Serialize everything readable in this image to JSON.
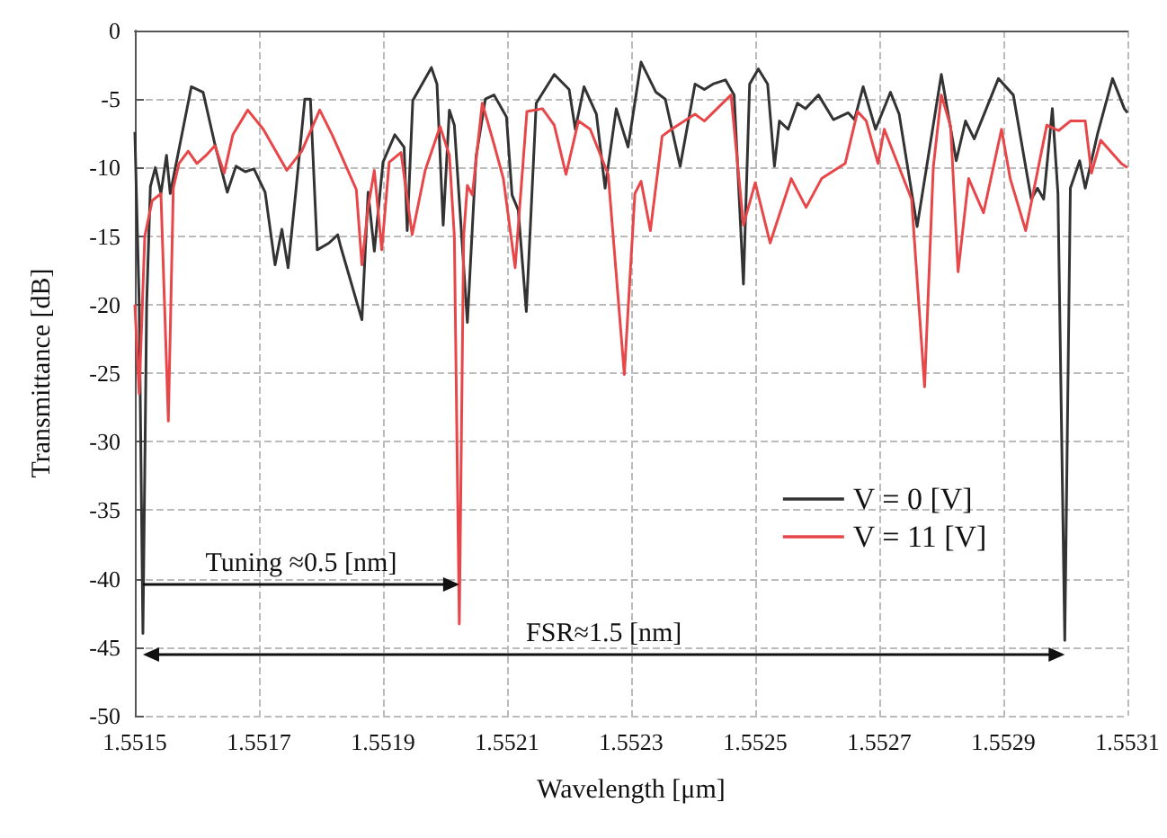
{
  "chart_data": {
    "type": "line",
    "xlabel": "Wavelength [μm]",
    "ylabel": "Transmittance [dB]",
    "xlim": [
      1.5515,
      1.5531
    ],
    "xticks": [
      1.5515,
      1.5517,
      1.5519,
      1.5521,
      1.5523,
      1.5525,
      1.5527,
      1.5529,
      1.5531
    ],
    "ylim": [
      -50,
      0
    ],
    "yticks": [
      -50,
      -45,
      -40,
      -35,
      -30,
      -25,
      -20,
      -15,
      -10,
      -5,
      0
    ],
    "grid": true,
    "legend": "right",
    "marker": "none",
    "line_style": "solid",
    "annotations": [
      "Tuning ≈0.5 [nm]",
      "FSR≈1.5 [nm]"
    ],
    "series": [
      {
        "name": "V = 0 [V]",
        "color": "#333333",
        "x": [
          1.5515,
          1.551507,
          1.551513,
          1.551519,
          1.551525,
          1.551533,
          1.551542,
          1.551551,
          1.551557,
          1.551591,
          1.55161,
          1.551629,
          1.551649,
          1.551663,
          1.551678,
          1.551692,
          1.55171,
          1.551726,
          1.551737,
          1.551747,
          1.55176,
          1.551774,
          1.551783,
          1.551794,
          1.551813,
          1.551827,
          1.551832,
          1.551866,
          1.551876,
          1.551886,
          1.5519,
          1.551919,
          1.551934,
          1.551939,
          1.551948,
          1.551978,
          1.551987,
          1.551997,
          1.552007,
          1.552015,
          1.552036,
          1.55205,
          1.552065,
          1.552079,
          1.552099,
          1.552108,
          1.552118,
          1.552131,
          1.552147,
          1.552176,
          1.5522,
          1.55221,
          1.552224,
          1.552244,
          1.552258,
          1.552276,
          1.552295,
          1.552316,
          1.55234,
          1.552355,
          1.552379,
          1.552403,
          1.552418,
          1.552432,
          1.552452,
          1.552466,
          1.552481,
          1.552491,
          1.552505,
          1.55252,
          1.552531,
          1.552539,
          1.552553,
          1.552568,
          1.552581,
          1.552602,
          1.552626,
          1.55265,
          1.55266,
          1.552674,
          1.552694,
          1.552718,
          1.552732,
          1.552761,
          1.5528,
          1.552824,
          1.552839,
          1.552853,
          1.552892,
          1.552916,
          1.552945,
          1.552955,
          1.552965,
          1.552979,
          1.552988,
          1.552999,
          1.553008,
          1.553023,
          1.553032,
          1.553052,
          1.553076,
          1.553095,
          1.5531
        ],
        "values": [
          -7.4,
          -20,
          -44,
          -20,
          -11.4,
          -10,
          -11.9,
          -9.1,
          -11.9,
          -4.1,
          -4.5,
          -8.3,
          -11.8,
          -9.9,
          -10.3,
          -10.1,
          -11.8,
          -17.1,
          -14.5,
          -17.3,
          -11.5,
          -5,
          -5,
          -16,
          -15.5,
          -14.9,
          -15.8,
          -21.1,
          -11.8,
          -16.1,
          -9.6,
          -7.6,
          -8.5,
          -14.6,
          -5.1,
          -2.7,
          -3.9,
          -14.2,
          -5.8,
          -6.9,
          -21.3,
          -9.2,
          -5,
          -4.7,
          -6.3,
          -12,
          -13.1,
          -20.5,
          -5.3,
          -3.2,
          -4.3,
          -7.2,
          -4.1,
          -6.1,
          -11.5,
          -5.7,
          -8.5,
          -2.3,
          -4.5,
          -5,
          -9.9,
          -3.9,
          -4.3,
          -3.9,
          -3.6,
          -4.7,
          -18.5,
          -3.9,
          -2.8,
          -3.9,
          -9.9,
          -6.6,
          -7.2,
          -5.3,
          -5.7,
          -4.7,
          -6.5,
          -6,
          -6.5,
          -4.1,
          -7.2,
          -4.5,
          -6.1,
          -14.3,
          -3.2,
          -9.5,
          -6.6,
          -7.9,
          -3.5,
          -4.7,
          -12.3,
          -11.5,
          -12.3,
          -5.7,
          -11.9,
          -44.5,
          -11.5,
          -9.5,
          -11.5,
          -7.5,
          -3.5,
          -5.7,
          -6
        ]
      },
      {
        "name": "V = 11 [V]",
        "color": "#e8474a",
        "x": [
          1.5515,
          1.551507,
          1.551516,
          1.551528,
          1.551542,
          1.551554,
          1.551562,
          1.551571,
          1.551586,
          1.5516,
          1.551615,
          1.551629,
          1.551644,
          1.551658,
          1.551682,
          1.551707,
          1.551745,
          1.551769,
          1.551798,
          1.551818,
          1.551857,
          1.551866,
          1.551876,
          1.551886,
          1.551898,
          1.55191,
          1.551929,
          1.551947,
          1.551968,
          1.551992,
          1.552007,
          1.552015,
          1.552023,
          1.55203,
          1.552036,
          1.552044,
          1.55206,
          1.552079,
          1.552094,
          1.552113,
          1.552132,
          1.552157,
          1.552176,
          1.552195,
          1.552215,
          1.552234,
          1.552263,
          1.552289,
          1.552306,
          1.552316,
          1.552331,
          1.55235,
          1.552365,
          1.552403,
          1.552418,
          1.552461,
          1.552481,
          1.5525,
          1.552524,
          1.552558,
          1.552582,
          1.552607,
          1.552645,
          1.552665,
          1.552679,
          1.552698,
          1.552708,
          1.552752,
          1.552773,
          1.552787,
          1.5528,
          1.552815,
          1.552827,
          1.552844,
          1.552868,
          1.552897,
          1.552911,
          1.552936,
          1.55297,
          1.552989,
          1.553008,
          1.553032,
          1.553042,
          1.553057,
          1.55309,
          1.5531
        ],
        "values": [
          -20,
          -26.5,
          -15,
          -12.4,
          -11.9,
          -28.5,
          -11.5,
          -9.7,
          -8.8,
          -9.7,
          -9.1,
          -8.4,
          -10.4,
          -7.6,
          -5.8,
          -7.2,
          -10.2,
          -8.8,
          -5.8,
          -7.6,
          -11.6,
          -17.1,
          -12.9,
          -10.2,
          -16,
          -9.6,
          -8.9,
          -14.9,
          -10.2,
          -7,
          -9.1,
          -15,
          -43.3,
          -15,
          -11.3,
          -12,
          -5.3,
          -8.3,
          -10.8,
          -17.3,
          -5.9,
          -5.7,
          -6.9,
          -10.5,
          -6.6,
          -7.2,
          -10.5,
          -25.1,
          -11.9,
          -11,
          -14.6,
          -7.7,
          -7.2,
          -6.1,
          -6.6,
          -4.7,
          -14.2,
          -11.1,
          -15.5,
          -10.8,
          -12.9,
          -10.8,
          -9.7,
          -5.9,
          -6.6,
          -9.7,
          -7.2,
          -12.3,
          -26,
          -10,
          -4.7,
          -7,
          -17.6,
          -10.8,
          -13.3,
          -7.2,
          -10.8,
          -14.6,
          -6.9,
          -7.3,
          -6.6,
          -6.6,
          -10.4,
          -8,
          -9.7,
          -10
        ]
      }
    ]
  }
}
